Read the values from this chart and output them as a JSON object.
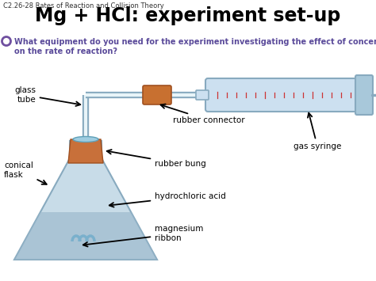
{
  "title": "Mg + HCl: experiment set-up",
  "subtitle": "C2.26-28 Rates of Reaction and Collision Theory",
  "question": "What equipment do you need for the experiment investigating the effect of concentration\non the rate of reaction?",
  "bg_color": "#ffffff",
  "title_color": "#000000",
  "subtitle_color": "#333333",
  "question_color": "#5a4a9a",
  "labels": {
    "glass_tube": "glass\ntube",
    "rubber_connector": "rubber connector",
    "gas_syringe": "gas syringe",
    "conical_flask": "conical\nflask",
    "rubber_bung": "rubber bung",
    "hydrochloric_acid": "hydrochloric acid",
    "magnesium_ribbon": "magnesium\nribbon"
  },
  "colors": {
    "flask_glass": "#c8dce8",
    "flask_outline": "#88aabf",
    "flask_liquid": "#9ab8cc",
    "bung_color": "#c8703a",
    "bung_outline": "#a05020",
    "tube_color": "#c8dce8",
    "tube_outline": "#88aabf",
    "syringe_body": "#cce0f0",
    "syringe_outline": "#88aabf",
    "syringe_markings": "#cc3333",
    "connector_color": "#c87030",
    "connector_outline": "#a05020",
    "plunger_color": "#a8c8da",
    "plunger_outline": "#88aabf",
    "label_color": "#000000",
    "arrow_color": "#000000",
    "circle_outline": "#7050a0",
    "ribbon_color": "#7ab0cc"
  }
}
